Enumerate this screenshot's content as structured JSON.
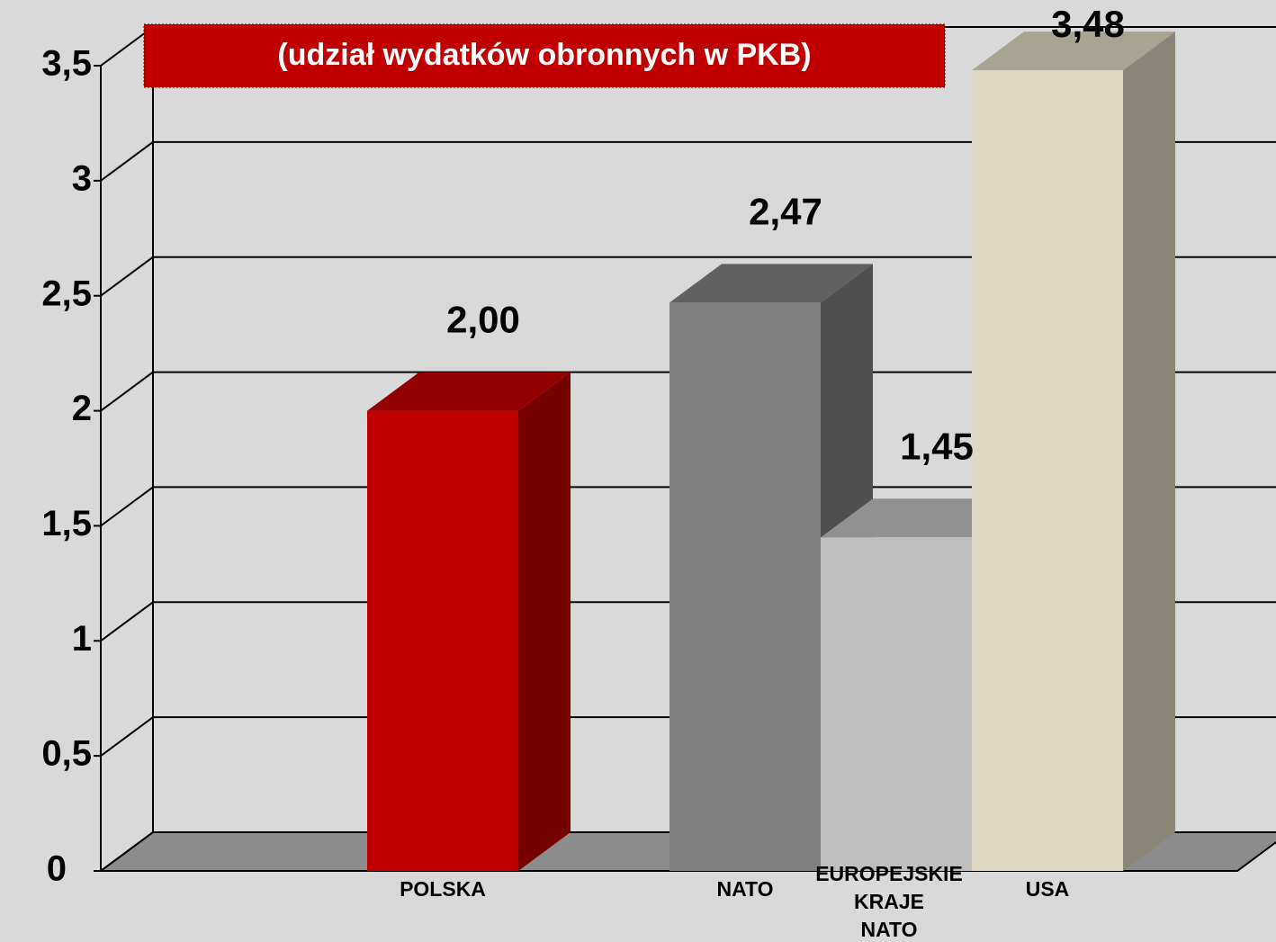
{
  "chart_data": {
    "type": "bar3d",
    "title": "(udział wydatków obronnych w PKB)",
    "categories": [
      "POLSKA",
      "NATO",
      "EUROPEJSKIE KRAJE NATO",
      "USA"
    ],
    "values": [
      2.0,
      2.47,
      1.45,
      3.48
    ],
    "value_labels": [
      "2,00",
      "2,47",
      "1,45",
      "3,48"
    ],
    "colors": [
      "#c00000",
      "#808080",
      "#bfbfbf",
      "#ded8c0"
    ],
    "ylim": [
      0,
      3.5
    ],
    "yticks": [
      0,
      {
        "value": 0.5,
        "label": "0,5"
      },
      1,
      {
        "value": 1.5,
        "label": "1,5"
      },
      2,
      {
        "value": 2.5,
        "label": "2,5"
      },
      3,
      {
        "value": 3.5,
        "label": "3,5"
      }
    ],
    "grid": true
  }
}
